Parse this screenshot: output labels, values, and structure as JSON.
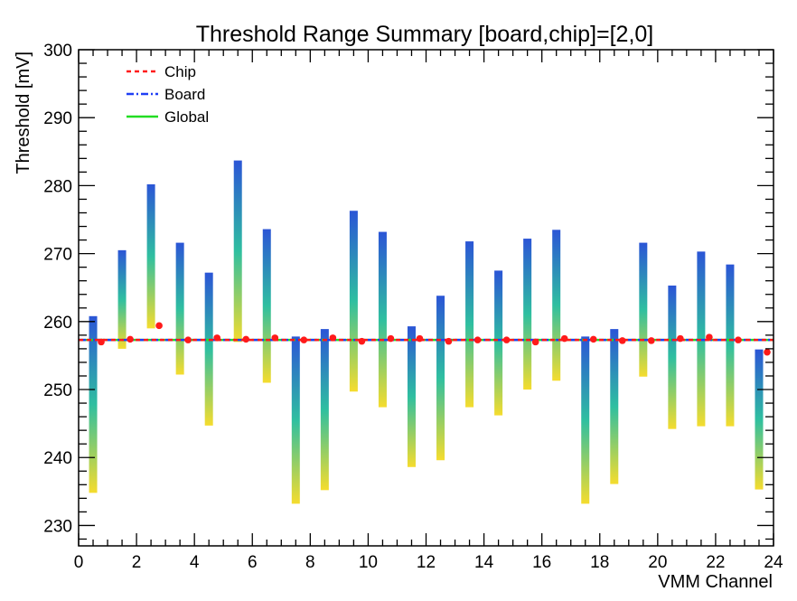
{
  "chart_data": {
    "type": "range-bar",
    "title": "Threshold Range Summary [board,chip]=[2,0]",
    "xlabel": "VMM Channel",
    "ylabel": "Threshold [mV]",
    "xlim": [
      0,
      24
    ],
    "ylim": [
      227,
      300
    ],
    "xticks": [
      0,
      2,
      4,
      6,
      8,
      10,
      12,
      14,
      16,
      18,
      20,
      22,
      24
    ],
    "yticks": [
      230,
      240,
      250,
      260,
      270,
      280,
      290,
      300
    ],
    "grid": false,
    "legend_position": "top-left",
    "colormap": [
      "#f5dc2e",
      "#2fbfa0",
      "#2b55d6"
    ],
    "legend": [
      {
        "label": "Chip",
        "color": "#ff1a1a",
        "style": "dashed"
      },
      {
        "label": "Board",
        "color": "#1f3ff5",
        "style": "dashdot"
      },
      {
        "label": "Global",
        "color": "#22dd22",
        "style": "solid"
      }
    ],
    "reference_lines": {
      "chip": 257.3,
      "board": 257.3,
      "global": 257.3
    },
    "channels": [
      {
        "x": 0.5,
        "min": 234.8,
        "max": 260.8,
        "point": 257.0
      },
      {
        "x": 1.5,
        "min": 256.0,
        "max": 270.5,
        "point": 257.4
      },
      {
        "x": 2.5,
        "min": 259.0,
        "max": 280.2,
        "point": 259.4
      },
      {
        "x": 3.5,
        "min": 252.2,
        "max": 271.6,
        "point": 257.3
      },
      {
        "x": 4.5,
        "min": 244.7,
        "max": 267.2,
        "point": 257.6
      },
      {
        "x": 5.5,
        "min": 257.0,
        "max": 283.7,
        "point": 257.4
      },
      {
        "x": 6.5,
        "min": 251.0,
        "max": 273.6,
        "point": 257.6
      },
      {
        "x": 7.5,
        "min": 233.2,
        "max": 257.8,
        "point": 257.3
      },
      {
        "x": 8.5,
        "min": 235.2,
        "max": 258.9,
        "point": 257.6
      },
      {
        "x": 9.5,
        "min": 249.7,
        "max": 276.3,
        "point": 257.1
      },
      {
        "x": 10.5,
        "min": 247.4,
        "max": 273.2,
        "point": 257.5
      },
      {
        "x": 11.5,
        "min": 238.6,
        "max": 259.3,
        "point": 257.5
      },
      {
        "x": 12.5,
        "min": 239.6,
        "max": 263.8,
        "point": 257.1
      },
      {
        "x": 13.5,
        "min": 247.4,
        "max": 271.8,
        "point": 257.3
      },
      {
        "x": 14.5,
        "min": 246.2,
        "max": 267.5,
        "point": 257.3
      },
      {
        "x": 15.5,
        "min": 250.0,
        "max": 272.2,
        "point": 257.0
      },
      {
        "x": 16.5,
        "min": 251.3,
        "max": 273.5,
        "point": 257.5
      },
      {
        "x": 17.5,
        "min": 233.2,
        "max": 257.8,
        "point": 257.4
      },
      {
        "x": 18.5,
        "min": 236.1,
        "max": 258.9,
        "point": 257.2
      },
      {
        "x": 19.5,
        "min": 251.9,
        "max": 271.6,
        "point": 257.2
      },
      {
        "x": 20.5,
        "min": 244.2,
        "max": 265.3,
        "point": 257.5
      },
      {
        "x": 21.5,
        "min": 244.6,
        "max": 270.3,
        "point": 257.7
      },
      {
        "x": 22.5,
        "min": 244.6,
        "max": 268.4,
        "point": 257.3
      },
      {
        "x": 23.5,
        "min": 235.3,
        "max": 255.9,
        "point": 255.5
      }
    ]
  }
}
